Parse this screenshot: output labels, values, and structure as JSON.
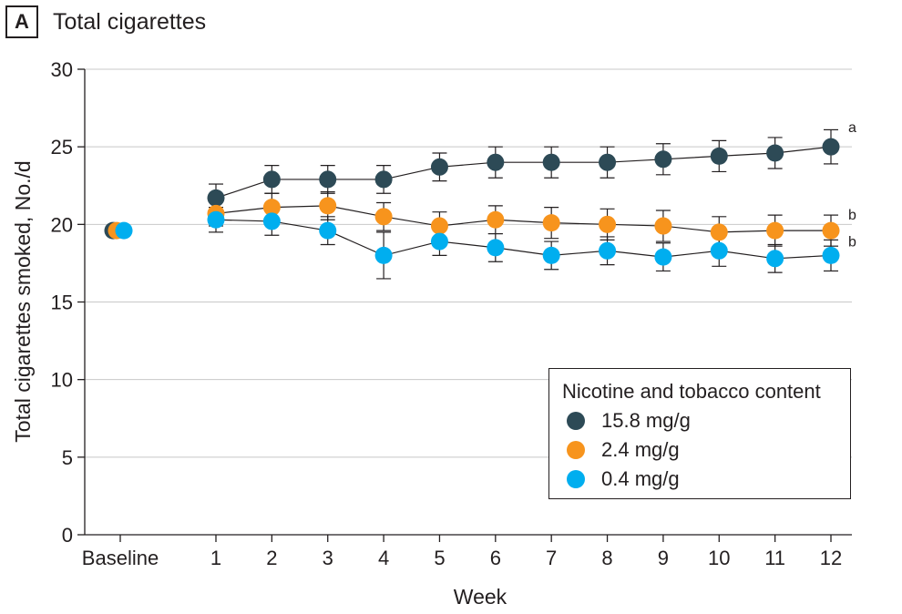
{
  "panel": {
    "letter": "A",
    "title": "Total cigarettes"
  },
  "chart_data": {
    "type": "line",
    "title": "Total cigarettes",
    "xlabel": "Week",
    "ylabel": "Total cigarettes smoked, No./d",
    "categories": [
      "Baseline",
      "1",
      "2",
      "3",
      "4",
      "5",
      "6",
      "7",
      "8",
      "9",
      "10",
      "11",
      "12"
    ],
    "ylim": [
      0,
      30
    ],
    "yticks": [
      0,
      5,
      10,
      15,
      20,
      25,
      30
    ],
    "grid": "horizontal",
    "legend_title": "Nicotine and tobacco content",
    "legend_position": "bottom-right",
    "series": [
      {
        "name": "15.8 mg/g",
        "color": "#2d4a56",
        "end_label": "a",
        "values": [
          19.6,
          21.7,
          22.9,
          22.9,
          22.9,
          23.7,
          24.0,
          24.0,
          24.0,
          24.2,
          24.4,
          24.6,
          25.0
        ],
        "errors": [
          null,
          0.9,
          0.9,
          0.9,
          0.9,
          0.9,
          1.0,
          1.0,
          1.0,
          1.0,
          1.0,
          1.0,
          1.1
        ]
      },
      {
        "name": "2.4 mg/g",
        "color": "#f7941d",
        "end_label": "b",
        "values": [
          19.6,
          20.7,
          21.1,
          21.2,
          20.5,
          19.9,
          20.3,
          20.1,
          20.0,
          19.9,
          19.5,
          19.6,
          19.6
        ],
        "errors": [
          null,
          0.8,
          0.9,
          0.9,
          0.9,
          0.9,
          0.9,
          1.0,
          1.0,
          1.0,
          1.0,
          1.0,
          1.0
        ]
      },
      {
        "name": "0.4 mg/g",
        "color": "#00aeef",
        "end_label": "b",
        "values": [
          19.6,
          20.3,
          20.2,
          19.6,
          18.0,
          18.9,
          18.5,
          18.0,
          18.3,
          17.9,
          18.3,
          17.8,
          18.0
        ],
        "errors": [
          null,
          0.8,
          0.9,
          0.9,
          1.5,
          0.9,
          0.9,
          0.9,
          0.9,
          0.9,
          1.0,
          0.9,
          1.0
        ]
      }
    ]
  }
}
